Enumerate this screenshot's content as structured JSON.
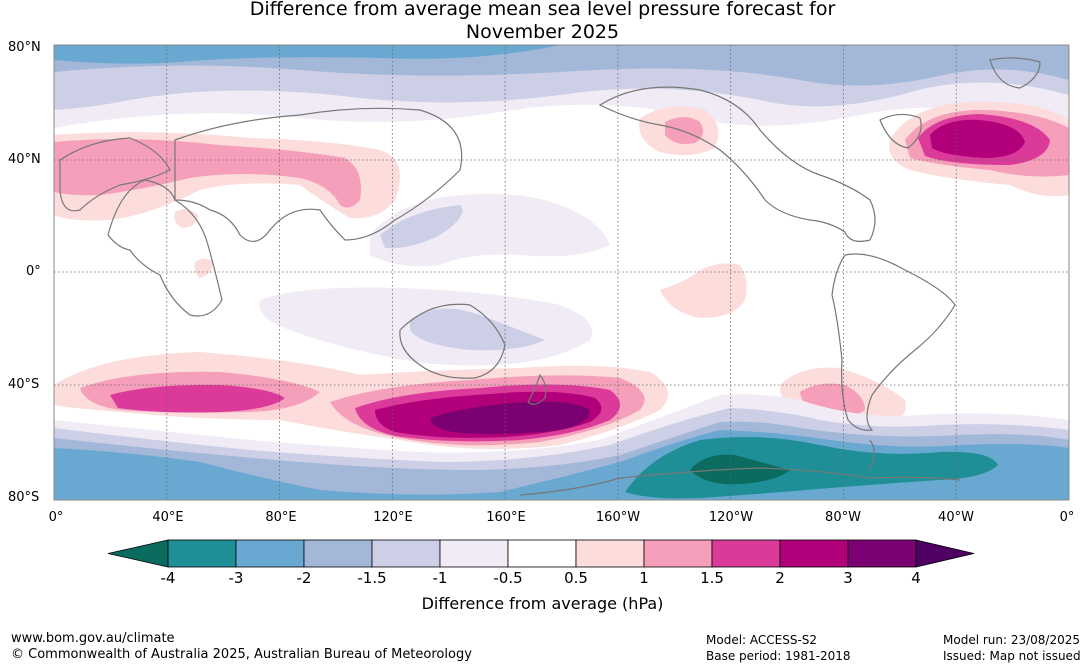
{
  "title": {
    "line1": "Difference from average mean sea level pressure forecast for",
    "line2": "November 2025"
  },
  "lat_labels": [
    "80°N",
    "40°N",
    "0°",
    "40°S",
    "80°S"
  ],
  "lon_labels": [
    "0°",
    "40°E",
    "80°E",
    "120°E",
    "160°E",
    "160°W",
    "120°W",
    "80°W",
    "40°W",
    "0°"
  ],
  "colorbar": {
    "title": "Difference from average (hPa)",
    "ticks": [
      "-4",
      "-3",
      "-2",
      "-1.5",
      "-1",
      "-0.5",
      "0.5",
      "1",
      "1.5",
      "2",
      "3",
      "4"
    ],
    "colors": [
      "#0b6b5e",
      "#1e8f96",
      "#69a9d1",
      "#a3b7d8",
      "#cccfe6",
      "#f0ebf5",
      "#ffffff",
      "#fddcdc",
      "#f59fba",
      "#dc3a9a",
      "#b1007a",
      "#7b0071",
      "#4e0063"
    ]
  },
  "footer": {
    "url": "www.bom.gov.au/climate",
    "copyright": "© Commonwealth of Australia 2025, Australian Bureau of Meteorology",
    "model": "Model: ACCESS-S2",
    "base_period": "Base period: 1981-2018",
    "model_run": "Model run: 23/08/2025",
    "issued": "Issued: Map not issued"
  }
}
